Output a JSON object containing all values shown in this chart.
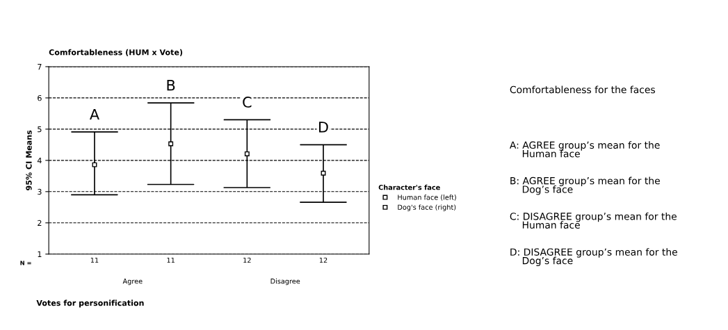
{
  "chart_data": {
    "type": "scatter",
    "title": "Comfortableness (HUM x Vote)",
    "ylabel": "95% CI Means",
    "legend_title": "Character's face",
    "categories": [
      "11",
      "11",
      "12",
      "12"
    ],
    "series": [
      {
        "name": "Human face (left)",
        "color": "#000000",
        "values": [
          3.86,
          null,
          4.21,
          null
        ],
        "errors": [
          [
            2.9,
            4.91
          ],
          null,
          [
            3.13,
            5.3
          ],
          null
        ]
      },
      {
        "name": "Dog's face (right)",
        "color": "#000000",
        "values": [
          null,
          4.53,
          null,
          3.59
        ],
        "errors": [
          null,
          [
            3.23,
            5.84
          ],
          null,
          [
            2.66,
            4.5
          ]
        ]
      }
    ],
    "ylim": [
      1,
      7
    ],
    "yticks": [
      1,
      2,
      3,
      4,
      5,
      6,
      7
    ],
    "grid": "y",
    "line_style": "dashed",
    "marker": "square",
    "legend": "right",
    "annotations": [
      "A",
      "B",
      "C",
      "D",
      "N =",
      "Agree",
      "Disagree",
      "Votes for personification",
      "Comfortableness for the faces",
      "A: AGREE group’s mean for the\n    Human face",
      "B: AGREE group’s mean for the\n    Dog’s face",
      "C: DISAGREE group’s mean for the\n    Human face",
      "D: DISAGREE group’s mean for the\n    Dog’s face"
    ]
  }
}
